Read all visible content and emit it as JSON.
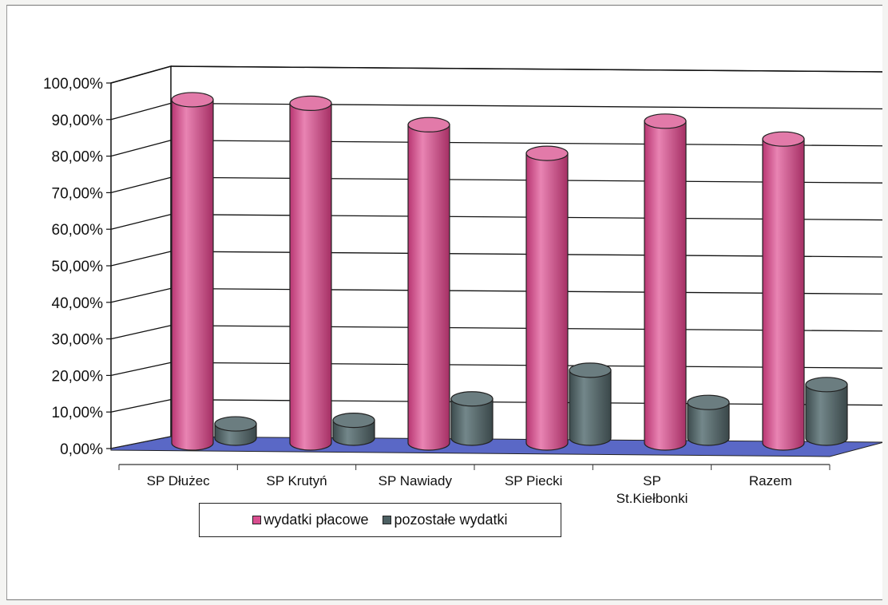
{
  "chart_data": {
    "type": "bar",
    "categories": [
      "SP Dłużec",
      "SP Krutyń",
      "SP Nawiady",
      "SP Piecki",
      "SP\nSt.Kiełbonki",
      "Razem"
    ],
    "series": [
      {
        "name": "wydatki płacowe",
        "values": [
          96,
          95,
          89,
          81,
          90,
          85
        ],
        "color": "#d94e8f"
      },
      {
        "name": "pozostałe wydatki",
        "values": [
          4,
          5,
          11,
          19,
          10,
          15
        ],
        "color": "#4d6063"
      }
    ],
    "y_ticks": [
      "0,00%",
      "10,00%",
      "20,00%",
      "30,00%",
      "40,00%",
      "50,00%",
      "60,00%",
      "70,00%",
      "80,00%",
      "90,00%",
      "100,00%"
    ],
    "ylim": [
      0,
      100
    ],
    "grid": true,
    "legend_position": "bottom",
    "style": "3d-cylinder"
  }
}
